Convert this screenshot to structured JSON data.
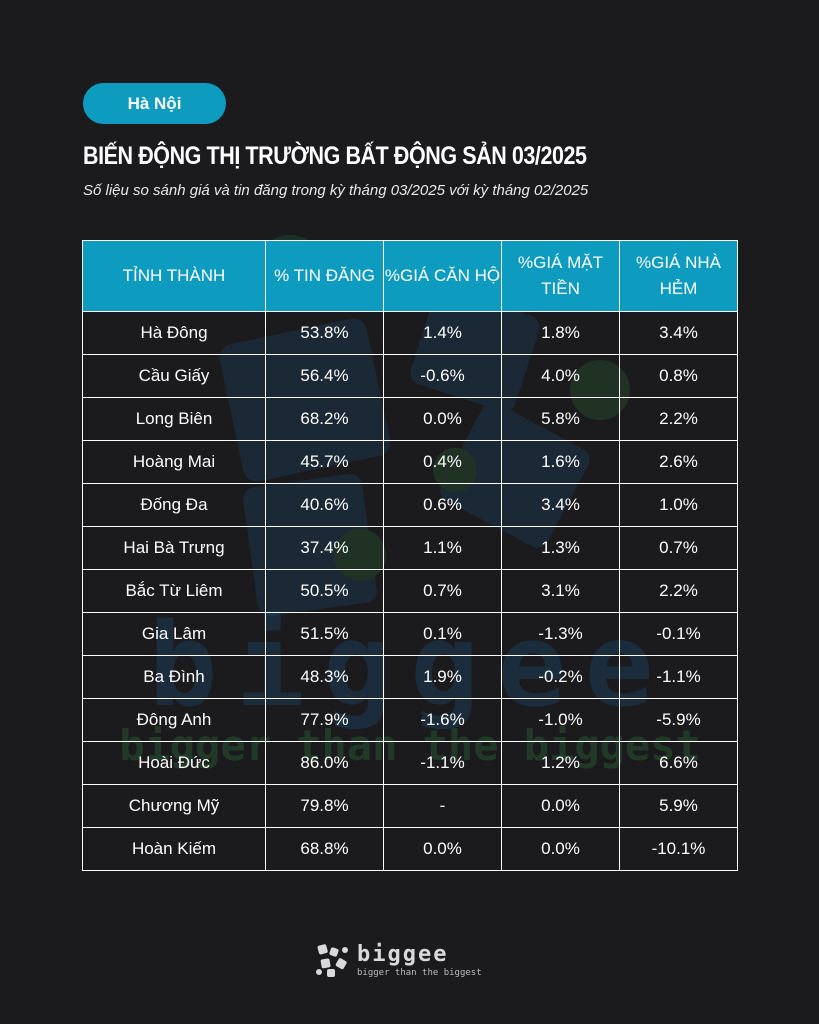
{
  "header": {
    "region_pill": "Hà Nội",
    "title": "BIẾN ĐỘNG THỊ TRƯỜNG BẤT ĐỘNG SẢN 03/2025",
    "subtitle": "Số liệu so sánh giá và tin đăng trong kỳ tháng 03/2025 với kỳ tháng 02/2025"
  },
  "table": {
    "columns": [
      "TỈNH THÀNH",
      "% TIN ĐĂNG",
      "%GIÁ CĂN HỘ",
      "%GIÁ MẶT TIỀN",
      "%GIÁ NHÀ HẺM"
    ],
    "rows": [
      [
        "Hà Đông",
        "53.8%",
        "1.4%",
        "1.8%",
        "3.4%"
      ],
      [
        "Cầu Giấy",
        "56.4%",
        "-0.6%",
        "4.0%",
        "0.8%"
      ],
      [
        "Long Biên",
        "68.2%",
        "0.0%",
        "5.8%",
        "2.2%"
      ],
      [
        "Hoàng Mai",
        "45.7%",
        "0.4%",
        "1.6%",
        "2.6%"
      ],
      [
        "Đống Đa",
        "40.6%",
        "0.6%",
        "3.4%",
        "1.0%"
      ],
      [
        "Hai Bà Trưng",
        "37.4%",
        "1.1%",
        "1.3%",
        "0.7%"
      ],
      [
        "Bắc Từ Liêm",
        "50.5%",
        "0.7%",
        "3.1%",
        "2.2%"
      ],
      [
        "Gia Lâm",
        "51.5%",
        "0.1%",
        "-1.3%",
        "-0.1%"
      ],
      [
        "Ba Đình",
        "48.3%",
        "1.9%",
        "-0.2%",
        "-1.1%"
      ],
      [
        "Đông Anh",
        "77.9%",
        "-1.6%",
        "-1.0%",
        "-5.9%"
      ],
      [
        "Hoài Đức",
        "86.0%",
        "-1.1%",
        "1.2%",
        "6.6%"
      ],
      [
        "Chương Mỹ",
        "79.8%",
        "-",
        "0.0%",
        "5.9%"
      ],
      [
        "Hoàn Kiếm",
        "68.8%",
        "0.0%",
        "0.0%",
        "-10.1%"
      ]
    ]
  },
  "watermark": {
    "word": "biggee",
    "tagline": "bigger than the biggest"
  },
  "footer": {
    "logo_word": "biggee",
    "logo_tagline": "bigger than the biggest",
    "logo_icon": "biggee-logo-icon"
  },
  "colors": {
    "background": "#1b1b1d",
    "accent": "#0e9bc0",
    "text": "#ffffff"
  }
}
